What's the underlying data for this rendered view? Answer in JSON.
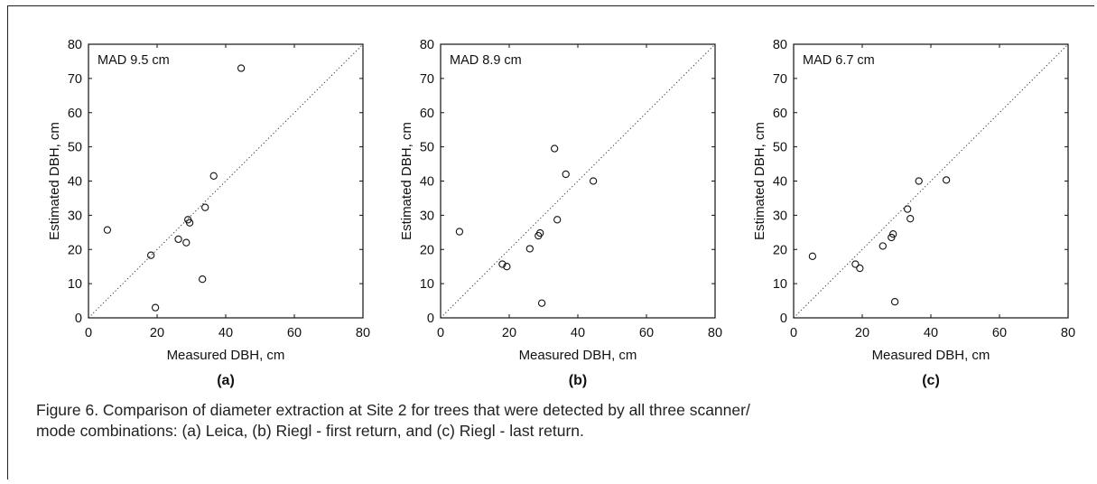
{
  "caption": {
    "line1": "Figure 6. Comparison of diameter extraction at Site 2 for trees that were detected by all three scanner/",
    "line2": "mode combinations: (a) Leica, (b) Riegl - first return, and (c) Riegl - last return."
  },
  "chart_data": [
    {
      "type": "scatter",
      "panel_label": "(a)",
      "annotation": "MAD 9.5 cm",
      "xlabel": "Measured DBH, cm",
      "ylabel": "Estimated DBH, cm",
      "xlim": [
        0,
        80
      ],
      "ylim": [
        0,
        80
      ],
      "xticks": [
        "0",
        "20",
        "40",
        "60",
        "80"
      ],
      "yticks": [
        "0",
        "10",
        "20",
        "30",
        "40",
        "50",
        "60",
        "70",
        "80"
      ],
      "reference_line": "1:1 dotted",
      "x": [
        5.5,
        18.2,
        19.5,
        26.2,
        28.5,
        29.0,
        29.5,
        33.2,
        34.0,
        36.5,
        44.5
      ],
      "y": [
        25.7,
        18.3,
        3.0,
        23.0,
        22.0,
        28.7,
        27.8,
        11.3,
        32.3,
        41.5,
        73.0
      ]
    },
    {
      "type": "scatter",
      "panel_label": "(b)",
      "annotation": "MAD 8.9 cm",
      "xlabel": "Measured DBH, cm",
      "ylabel": "Estimated DBH, cm",
      "xlim": [
        0,
        80
      ],
      "ylim": [
        0,
        80
      ],
      "xticks": [
        "0",
        "20",
        "40",
        "60",
        "80"
      ],
      "yticks": [
        "0",
        "10",
        "20",
        "30",
        "40",
        "50",
        "60",
        "70",
        "80"
      ],
      "reference_line": "1:1 dotted",
      "x": [
        5.5,
        18.0,
        19.3,
        26.0,
        28.5,
        29.0,
        29.5,
        33.2,
        34.0,
        36.5,
        44.5
      ],
      "y": [
        25.2,
        15.7,
        15.0,
        20.2,
        24.0,
        24.8,
        4.3,
        49.5,
        28.7,
        42.0,
        40.0
      ]
    },
    {
      "type": "scatter",
      "panel_label": "(c)",
      "annotation": "MAD 6.7 cm",
      "xlabel": "Measured DBH, cm",
      "ylabel": "Estimated DBH, cm",
      "xlim": [
        0,
        80
      ],
      "ylim": [
        0,
        80
      ],
      "xticks": [
        "0",
        "20",
        "40",
        "60",
        "80"
      ],
      "yticks": [
        "0",
        "10",
        "20",
        "30",
        "40",
        "50",
        "60",
        "70",
        "80"
      ],
      "reference_line": "1:1 dotted",
      "x": [
        5.5,
        18.0,
        19.3,
        26.0,
        28.5,
        29.0,
        29.5,
        33.2,
        34.0,
        36.5,
        44.5
      ],
      "y": [
        18.0,
        15.7,
        14.5,
        21.0,
        23.5,
        24.5,
        4.7,
        31.8,
        29.0,
        40.0,
        40.3
      ]
    }
  ]
}
